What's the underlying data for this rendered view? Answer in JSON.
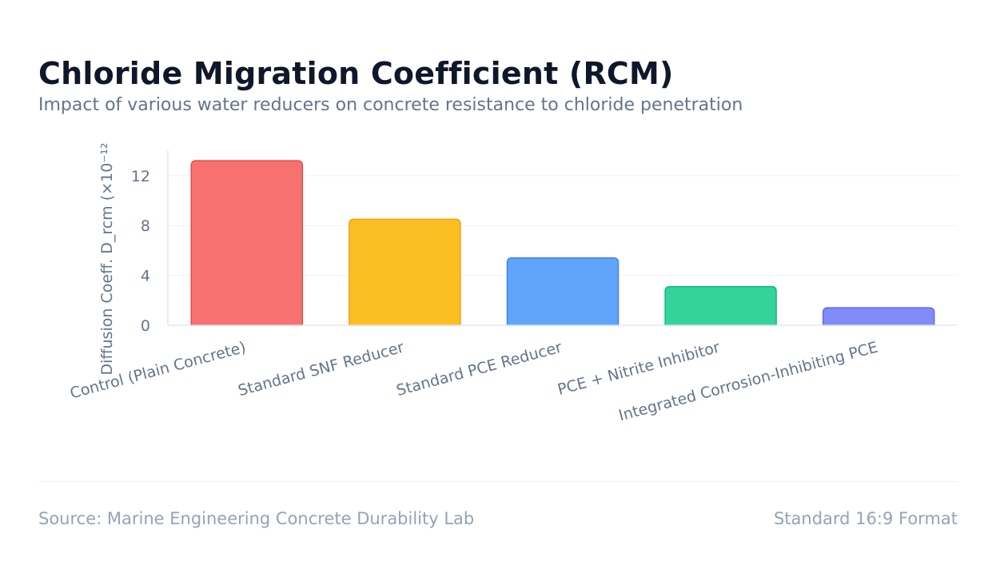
{
  "header": {
    "title": "Chloride Migration Coefficient (RCM)",
    "subtitle": "Impact of various water reducers on concrete resistance to chloride penetration"
  },
  "footer": {
    "source": "Source: Marine Engineering Concrete Durability Lab",
    "format": "Standard 16:9 Format"
  },
  "chart_data": {
    "type": "bar",
    "title": "Chloride Migration Coefficient (RCM)",
    "subtitle": "Impact of various water reducers on concrete resistance to chloride penetration",
    "xlabel": "",
    "ylabel": "Diffusion Coeff. D_rcm (×10⁻¹²",
    "categories": [
      "Control (Plain Concrete)",
      "Standard SNF Reducer",
      "Standard PCE Reducer",
      "PCE + Nitrite Inhibitor",
      "Integrated Corrosion-Inhibiting PCE"
    ],
    "values": [
      13.2,
      8.5,
      5.4,
      3.1,
      1.4
    ],
    "colors": [
      "#f87171",
      "#fbbf24",
      "#60a5fa",
      "#34d399",
      "#818cf8"
    ],
    "border_colors": [
      "#ef4444",
      "#f59e0b",
      "#3b82f6",
      "#10b981",
      "#6366f1"
    ],
    "yticks": [
      0,
      4,
      8,
      12
    ],
    "ylim": [
      0,
      14
    ],
    "grid": true,
    "legend": "none"
  }
}
